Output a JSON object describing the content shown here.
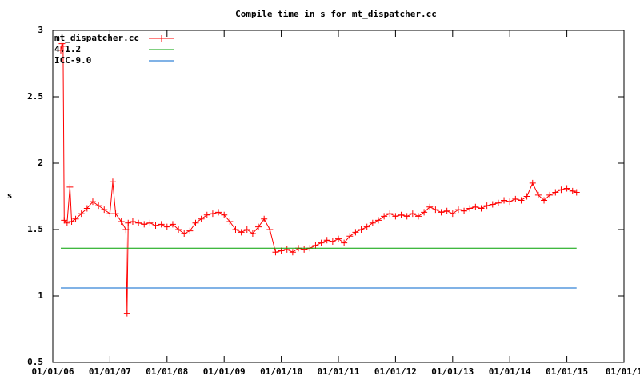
{
  "chart_data": {
    "type": "line",
    "title": "Compile time in s for mt_dispatcher.cc",
    "ylabel": "s",
    "legend": "top-left",
    "xlim": [
      2006,
      2016
    ],
    "xticks": [
      {
        "value": 2006,
        "label": "01/01/06"
      },
      {
        "value": 2007,
        "label": "01/01/07"
      },
      {
        "value": 2008,
        "label": "01/01/08"
      },
      {
        "value": 2009,
        "label": "01/01/09"
      },
      {
        "value": 2010,
        "label": "01/01/10"
      },
      {
        "value": 2011,
        "label": "01/01/11"
      },
      {
        "value": 2012,
        "label": "01/01/12"
      },
      {
        "value": 2013,
        "label": "01/01/13"
      },
      {
        "value": 2014,
        "label": "01/01/14"
      },
      {
        "value": 2015,
        "label": "01/01/15"
      },
      {
        "value": 2016,
        "label": "01/01/1"
      }
    ],
    "ylim": [
      0.5,
      3
    ],
    "yticks": [
      0.5,
      1,
      1.5,
      2,
      2.5,
      3
    ],
    "series": [
      {
        "name": "mt_dispatcher.cc",
        "color": "#ff0000",
        "marker": "plus",
        "x": [
          2006.14,
          2006.16,
          2006.18,
          2006.2,
          2006.25,
          2006.3,
          2006.33,
          2006.4,
          2006.5,
          2006.6,
          2006.7,
          2006.8,
          2006.9,
          2007.0,
          2007.05,
          2007.1,
          2007.2,
          2007.28,
          2007.3,
          2007.32,
          2007.4,
          2007.5,
          2007.6,
          2007.7,
          2007.8,
          2007.9,
          2008.0,
          2008.1,
          2008.2,
          2008.3,
          2008.4,
          2008.5,
          2008.6,
          2008.7,
          2008.8,
          2008.9,
          2009.0,
          2009.1,
          2009.2,
          2009.3,
          2009.4,
          2009.5,
          2009.6,
          2009.7,
          2009.8,
          2009.9,
          2010.0,
          2010.1,
          2010.2,
          2010.3,
          2010.4,
          2010.5,
          2010.6,
          2010.7,
          2010.8,
          2010.9,
          2011.0,
          2011.1,
          2011.2,
          2011.3,
          2011.4,
          2011.5,
          2011.6,
          2011.7,
          2011.8,
          2011.9,
          2012.0,
          2012.1,
          2012.2,
          2012.3,
          2012.4,
          2012.5,
          2012.6,
          2012.7,
          2012.8,
          2012.9,
          2013.0,
          2013.1,
          2013.2,
          2013.3,
          2013.4,
          2013.5,
          2013.6,
          2013.7,
          2013.8,
          2013.9,
          2014.0,
          2014.1,
          2014.2,
          2014.3,
          2014.4,
          2014.5,
          2014.6,
          2014.7,
          2014.8,
          2014.9,
          2015.0,
          2015.1,
          2015.17
        ],
        "values": [
          2.85,
          2.9,
          2.88,
          1.57,
          1.55,
          1.82,
          1.56,
          1.58,
          1.62,
          1.66,
          1.71,
          1.68,
          1.65,
          1.62,
          1.86,
          1.62,
          1.56,
          1.5,
          0.87,
          1.55,
          1.56,
          1.55,
          1.54,
          1.55,
          1.53,
          1.54,
          1.52,
          1.54,
          1.5,
          1.47,
          1.49,
          1.55,
          1.58,
          1.61,
          1.62,
          1.63,
          1.61,
          1.56,
          1.5,
          1.48,
          1.5,
          1.47,
          1.52,
          1.58,
          1.5,
          1.33,
          1.34,
          1.35,
          1.33,
          1.36,
          1.35,
          1.36,
          1.38,
          1.4,
          1.42,
          1.41,
          1.43,
          1.4,
          1.45,
          1.48,
          1.5,
          1.52,
          1.55,
          1.57,
          1.6,
          1.62,
          1.6,
          1.61,
          1.6,
          1.62,
          1.6,
          1.63,
          1.67,
          1.65,
          1.63,
          1.64,
          1.62,
          1.65,
          1.64,
          1.66,
          1.67,
          1.66,
          1.68,
          1.69,
          1.7,
          1.72,
          1.71,
          1.73,
          1.72,
          1.75,
          1.85,
          1.76,
          1.72,
          1.76,
          1.78,
          1.8,
          1.81,
          1.79,
          1.78
        ]
      },
      {
        "name": "4.1.2",
        "color": "#00a000",
        "x": [
          2006.14,
          2015.17
        ],
        "values": [
          1.36,
          1.36
        ]
      },
      {
        "name": "ICC-9.0",
        "color": "#0066cc",
        "x": [
          2006.14,
          2015.17
        ],
        "values": [
          1.06,
          1.06
        ]
      }
    ]
  }
}
